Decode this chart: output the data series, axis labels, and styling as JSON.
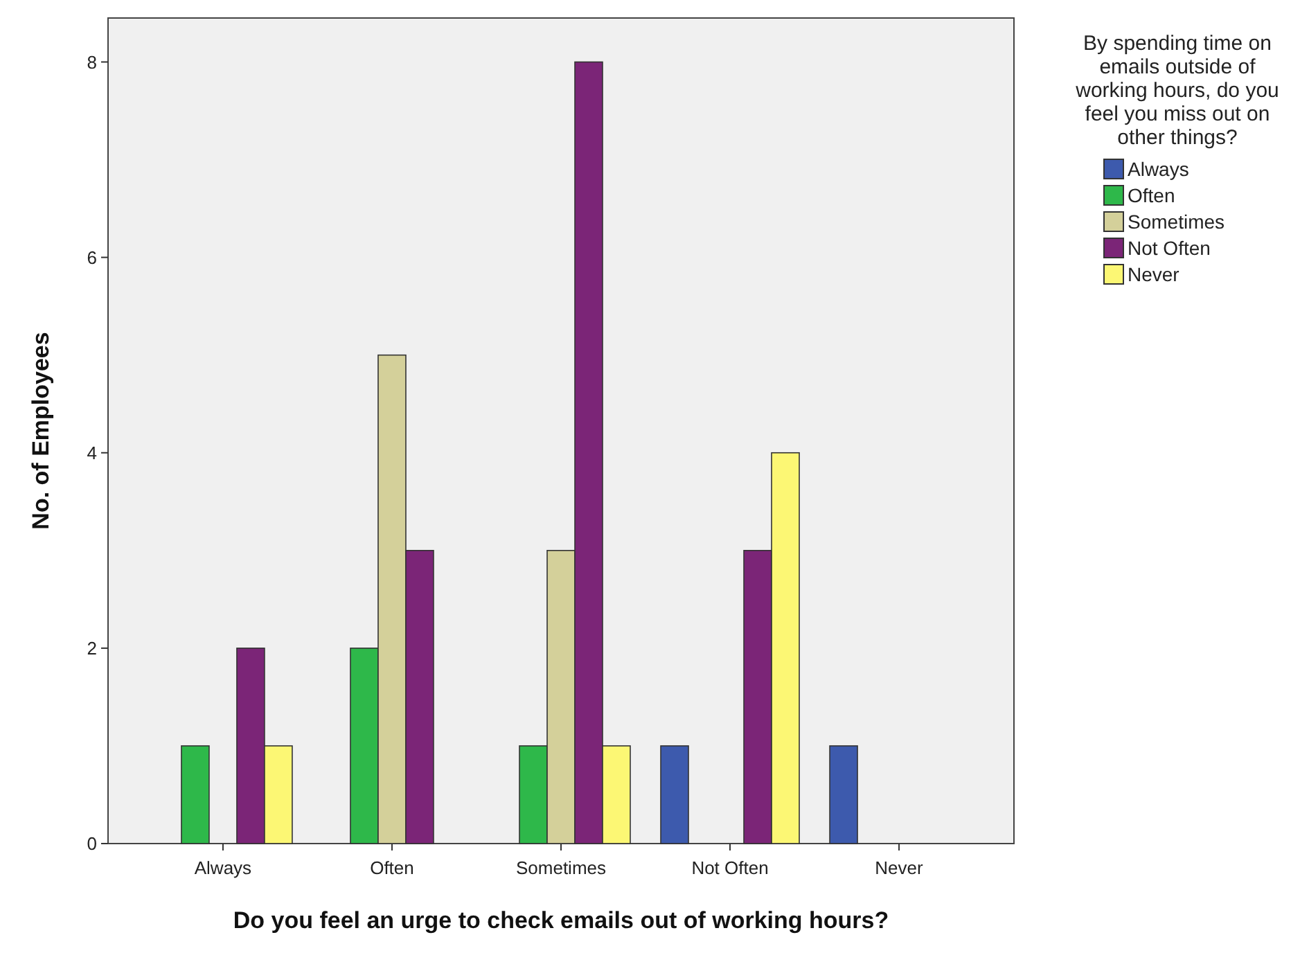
{
  "chart_data": {
    "type": "bar",
    "xlabel": "Do you feel an urge to check emails out of working hours?",
    "ylabel": "No. of Employees",
    "legend_title": "By spending time on emails outside of working hours, do you feel you miss out on other things?",
    "categories": [
      "Always",
      "Often",
      "Sometimes",
      "Not Often",
      "Never"
    ],
    "series": [
      {
        "name": "Always",
        "color": "#3d5aad",
        "values": [
          null,
          null,
          null,
          1,
          1
        ]
      },
      {
        "name": "Often",
        "color": "#2eb84a",
        "values": [
          1,
          2,
          1,
          null,
          null
        ]
      },
      {
        "name": "Sometimes",
        "color": "#d4d09a",
        "values": [
          null,
          5,
          3,
          null,
          null
        ]
      },
      {
        "name": "Not Often",
        "color": "#7b2577",
        "values": [
          2,
          3,
          8,
          3,
          null
        ]
      },
      {
        "name": "Never",
        "color": "#fcf774",
        "values": [
          1,
          null,
          1,
          4,
          null
        ]
      }
    ],
    "ylim": [
      0,
      8.45
    ],
    "yticks": [
      0,
      2,
      4,
      6,
      8
    ],
    "grid": false,
    "legend": "top right"
  }
}
